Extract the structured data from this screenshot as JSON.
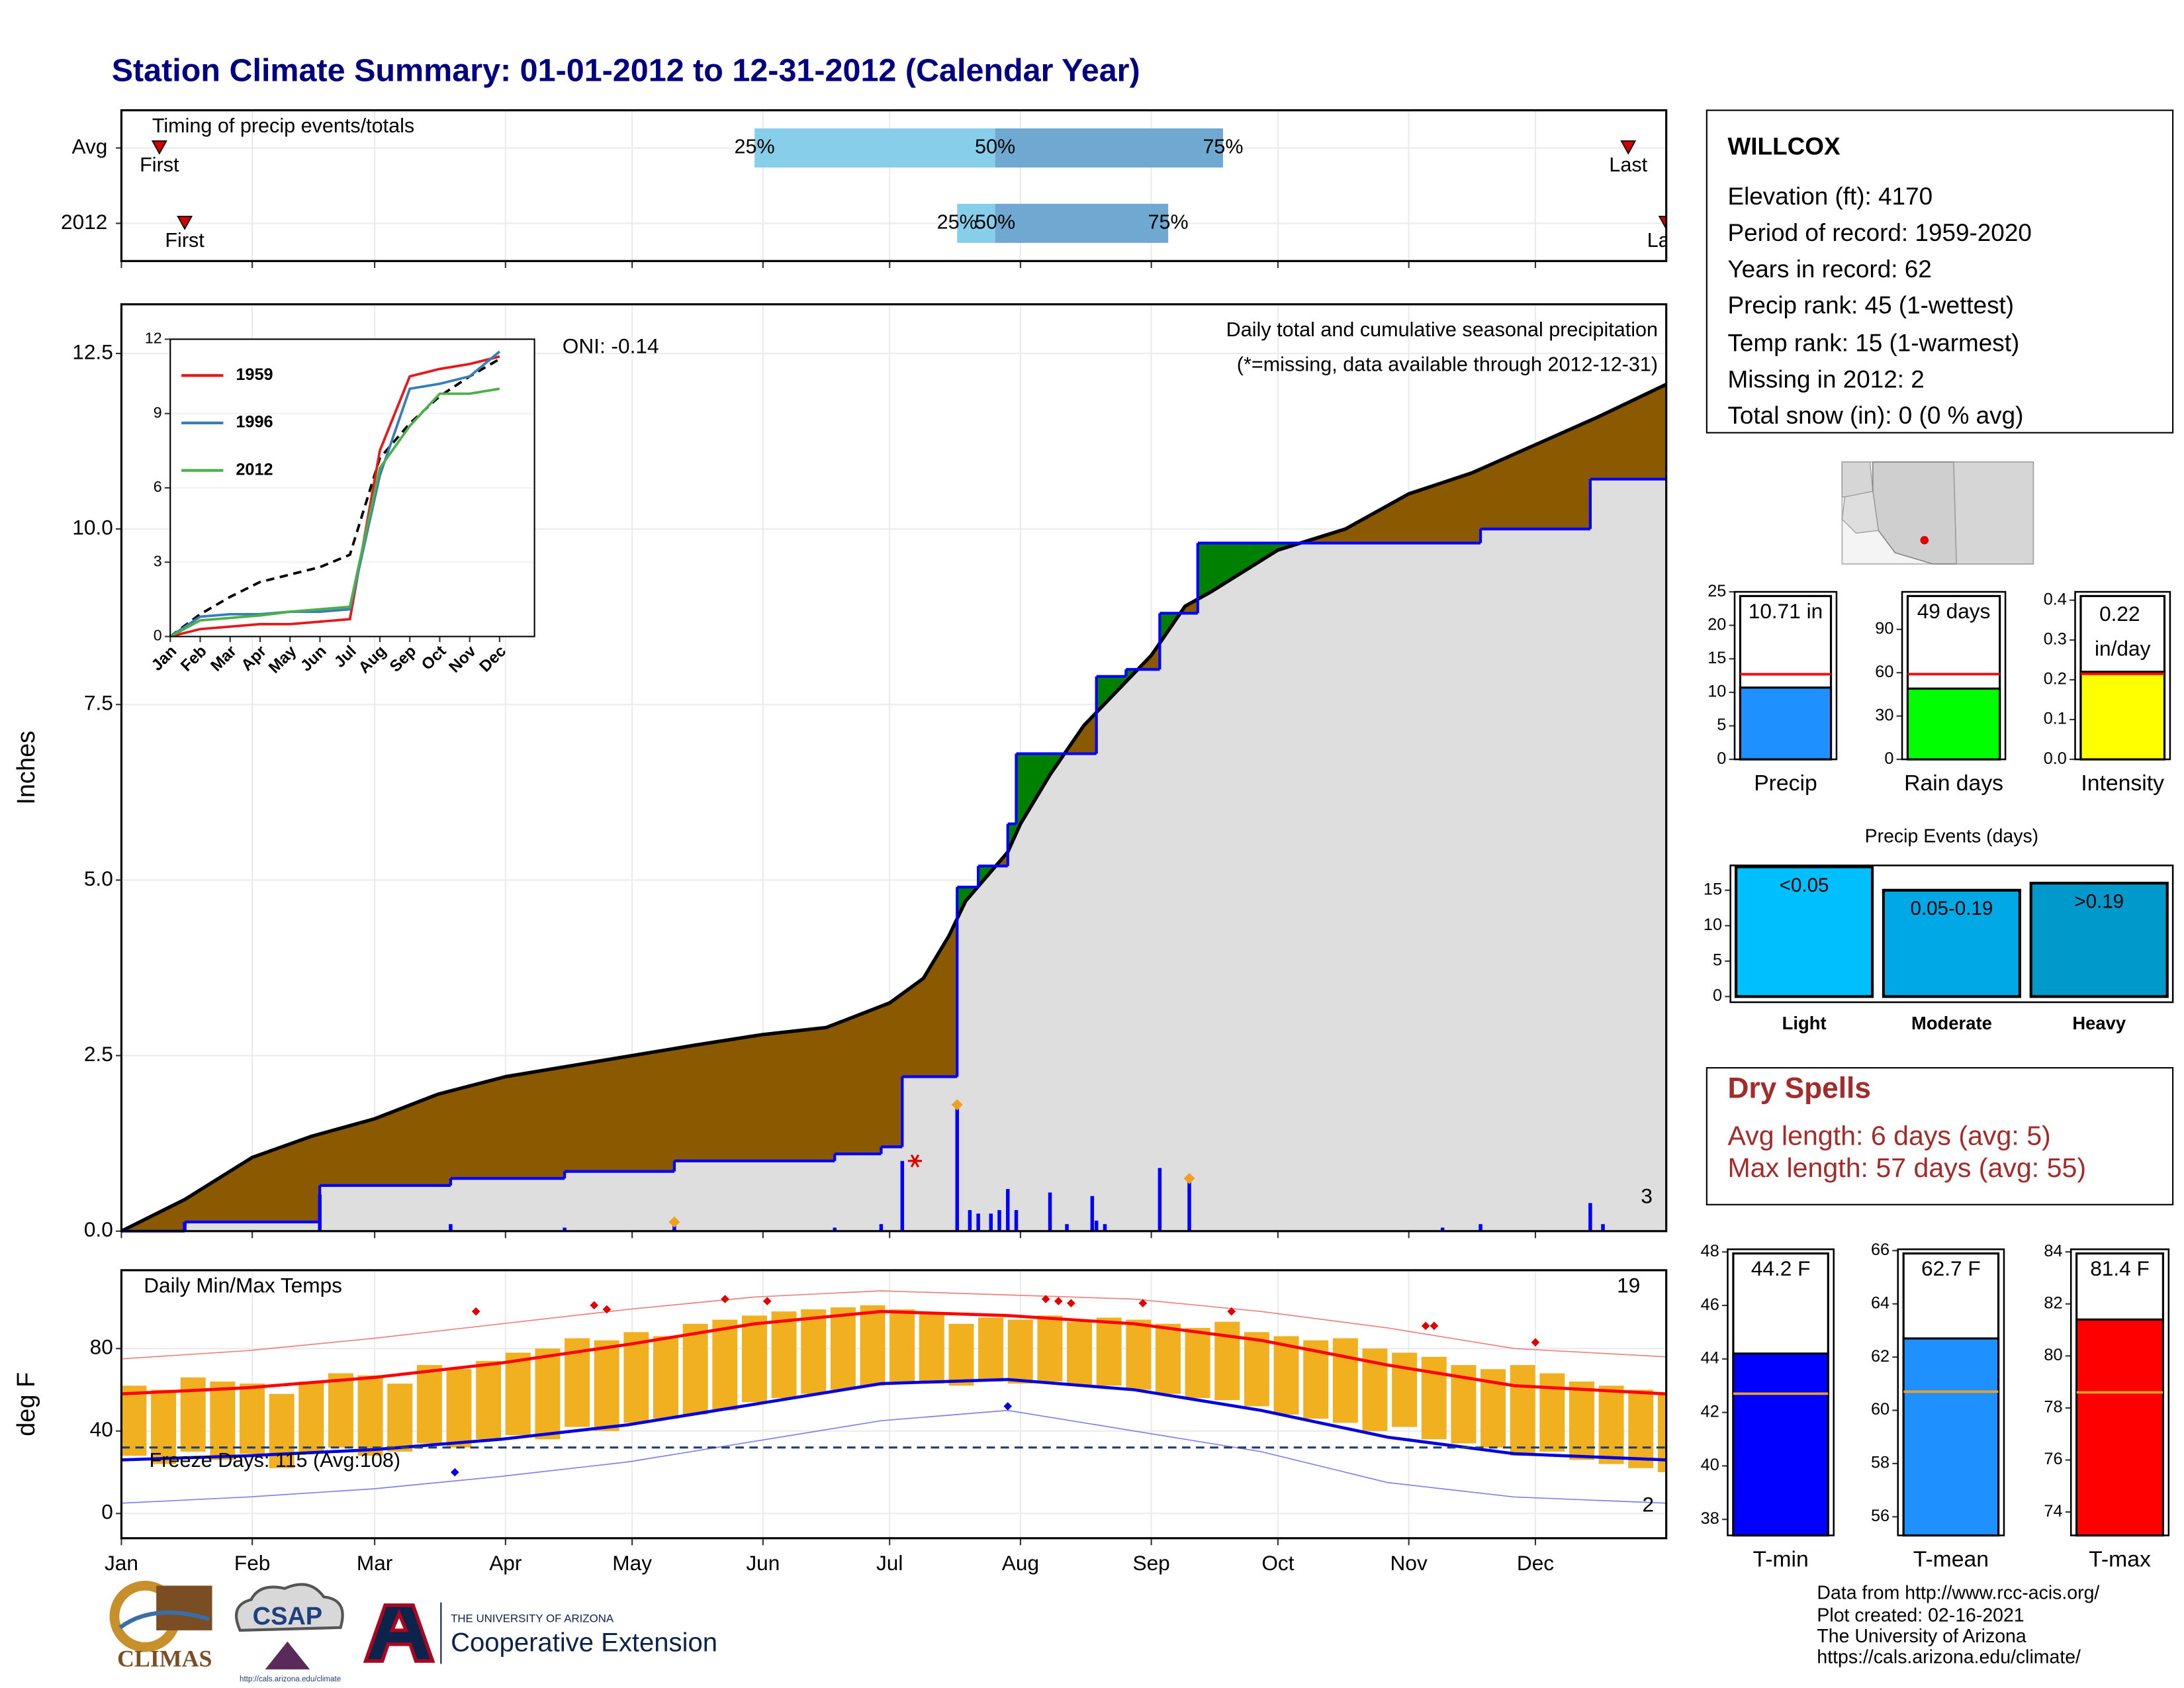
{
  "title": "Station Climate Summary: 01-01-2012 to 12-31-2012 (Calendar Year)",
  "station": {
    "name": "WILLCOX",
    "lines": [
      "Elevation (ft): 4170",
      "Period of record: 1959-2020",
      "Years in record: 62",
      "Precip rank: 45 (1-wettest)",
      "Temp rank: 15 (1-warmest)",
      "Missing in 2012: 2",
      "Total snow (in): 0 (0 % avg)"
    ]
  },
  "dry_spells": {
    "title": "Dry Spells",
    "lines": [
      "Avg length: 6 days (avg: 5)",
      "Max length: 57 days (avg: 55)"
    ]
  },
  "credits": [
    "Data from http://www.rcc-acis.org/",
    "Plot created: 02-16-2021",
    "The University of Arizona",
    "https://cals.arizona.edu/climate/"
  ],
  "logos": {
    "climas": "CLIMAS",
    "csap": "CSAP",
    "csap_url": "http://cals.arizona.edu/climate",
    "university": "THE UNIVERSITY OF ARIZONA",
    "extension": "Cooperative Extension"
  },
  "chart_data": [
    {
      "type": "timeline",
      "title": "Timing of precip events/totals",
      "categories": [
        "Avg",
        "2012"
      ],
      "p25": [
        150,
        198
      ],
      "p50": [
        207,
        207
      ],
      "p75": [
        261,
        248
      ],
      "first": [
        9,
        15
      ],
      "last": [
        357,
        366
      ],
      "percentile_labels": [
        "25%",
        "50%",
        "75%"
      ],
      "first_label": "First",
      "last_label": "Last",
      "light_color": "#87ceeb",
      "dark_color": "#6fa8d0",
      "marker_color": "#d00000",
      "xlim": [
        0,
        366
      ],
      "xticks": [
        0,
        31,
        60,
        91,
        121,
        152,
        182,
        213,
        244,
        274,
        305,
        335
      ],
      "grid": true
    },
    {
      "type": "area",
      "ylabel": "Inches",
      "oni": "ONI: -0.14",
      "subtitle": "Daily total and cumulative seasonal precipitation",
      "note": "(*=missing, data available through 2012-12-31)",
      "note_color": "#e00000",
      "count_label": "3",
      "count_color": "#f0a020",
      "xlim": [
        0,
        366
      ],
      "xticks": [
        0,
        31,
        60,
        91,
        121,
        152,
        182,
        213,
        244,
        274,
        305,
        335
      ],
      "ylim": [
        0,
        13.2
      ],
      "yticks": [
        {
          "value": 0,
          "label": "0.0"
        },
        2.5,
        {
          "value": 5,
          "label": "5.0"
        },
        7.5,
        {
          "value": 10,
          "label": "10.0"
        },
        12.5
      ],
      "grid": true,
      "cumulative_avg": {
        "color": "#000000",
        "fill": "#8b5a00",
        "x": [
          0,
          15,
          31,
          45,
          60,
          75,
          91,
          106,
          121,
          136,
          152,
          167,
          182,
          190,
          196,
          200,
          210,
          213,
          220,
          228,
          236,
          244,
          252,
          258,
          274,
          290,
          305,
          320,
          335,
          350,
          366
        ],
        "values": [
          0,
          0.45,
          1.05,
          1.35,
          1.6,
          1.95,
          2.2,
          2.35,
          2.5,
          2.65,
          2.8,
          2.9,
          3.25,
          3.6,
          4.2,
          4.7,
          5.4,
          5.8,
          6.5,
          7.2,
          7.7,
          8.2,
          8.9,
          9.1,
          9.7,
          10.0,
          10.5,
          10.8,
          11.2,
          11.6,
          12.06
        ]
      },
      "cumulative_2012": {
        "color": "#0000ff",
        "fill": "#dedede",
        "above_fill": "#008000",
        "x": [
          0,
          15,
          47,
          78,
          105,
          131,
          169,
          180,
          185,
          198,
          203,
          210,
          212,
          231,
          238,
          246,
          255,
          322,
          348
        ],
        "values": [
          0,
          0.13,
          0.65,
          0.75,
          0.85,
          1.0,
          1.1,
          1.2,
          2.2,
          4.9,
          5.2,
          5.8,
          6.8,
          7.9,
          8.0,
          8.8,
          9.8,
          10.0,
          10.71
        ]
      },
      "daily": {
        "color": "#0000ff",
        "x": [
          15,
          47,
          78,
          105,
          131,
          169,
          180,
          185,
          198,
          201,
          203,
          206,
          208,
          210,
          212,
          220,
          224,
          230,
          231,
          233,
          246,
          253,
          313,
          322,
          348,
          351
        ],
        "values": [
          0.13,
          0.52,
          0.1,
          0.05,
          0.1,
          0.05,
          0.1,
          1.0,
          1.8,
          0.3,
          0.25,
          0.25,
          0.3,
          0.6,
          0.3,
          0.55,
          0.1,
          0.5,
          0.15,
          0.1,
          0.9,
          0.8,
          0.05,
          0.1,
          0.4,
          0.1
        ]
      },
      "max_markers": {
        "color": "#f0a020",
        "x": [
          131,
          198,
          253
        ],
        "values": [
          0.13,
          1.8,
          0.75
        ]
      },
      "missing_markers": {
        "color": "#e00000",
        "x": [
          188
        ],
        "values": [
          1.0
        ]
      }
    },
    {
      "type": "line",
      "categories": [
        "Jan",
        "Feb",
        "Mar",
        "Apr",
        "May",
        "Jun",
        "Jul",
        "Aug",
        "Sep",
        "Oct",
        "Nov",
        "Dec"
      ],
      "ylim": [
        0,
        12
      ],
      "yticks": [
        0,
        3,
        6,
        9,
        12
      ],
      "grid": true,
      "series": [
        {
          "name": "1959",
          "color": "#e41a1c",
          "values": [
            0,
            0.3,
            0.4,
            0.5,
            0.5,
            0.6,
            0.7,
            7.5,
            10.5,
            10.8,
            11.0,
            11.3
          ]
        },
        {
          "name": "1996",
          "color": "#377eb8",
          "values": [
            0,
            0.8,
            0.9,
            0.9,
            1.0,
            1.0,
            1.1,
            6.5,
            10.0,
            10.2,
            10.5,
            11.5
          ]
        },
        {
          "name": "2012",
          "color": "#4daf4a",
          "values": [
            0,
            0.65,
            0.75,
            0.85,
            1.0,
            1.1,
            1.2,
            6.8,
            8.5,
            9.8,
            9.8,
            10.0
          ]
        }
      ],
      "reference": {
        "color": "#000000",
        "dashed": true,
        "values": [
          0,
          0.9,
          1.6,
          2.2,
          2.5,
          2.8,
          3.3,
          7.2,
          8.6,
          9.7,
          10.5,
          11.2
        ]
      }
    },
    {
      "type": "rangebar",
      "title": "Daily Min/Max Temps",
      "ylabel": "deg F",
      "high_count": "19",
      "low_count": "2",
      "freeze_label": "Freeze Days: 115 (Avg:108)",
      "xlim": [
        0,
        366
      ],
      "xticks": [
        {
          "value": 0,
          "label": "Jan"
        },
        {
          "value": 31,
          "label": "Feb"
        },
        {
          "value": 60,
          "label": "Mar"
        },
        {
          "value": 91,
          "label": "Apr"
        },
        {
          "value": 121,
          "label": "May"
        },
        {
          "value": 152,
          "label": "Jun"
        },
        {
          "value": 182,
          "label": "Jul"
        },
        {
          "value": 213,
          "label": "Aug"
        },
        {
          "value": 244,
          "label": "Sep"
        },
        {
          "value": 274,
          "label": "Oct"
        },
        {
          "value": 305,
          "label": "Nov"
        },
        {
          "value": 335,
          "label": "Dec"
        }
      ],
      "ylim": [
        -12,
        118
      ],
      "yticks": [
        0,
        40,
        80
      ],
      "grid": true,
      "bars": {
        "color": "#f0b020",
        "x": [
          0,
          7,
          14,
          21,
          28,
          35,
          42,
          49,
          56,
          63,
          70,
          77,
          84,
          91,
          98,
          105,
          112,
          119,
          126,
          133,
          140,
          147,
          154,
          161,
          168,
          175,
          182,
          189,
          196,
          203,
          210,
          217,
          224,
          231,
          238,
          245,
          252,
          259,
          266,
          273,
          280,
          287,
          294,
          301,
          308,
          315,
          322,
          329,
          336,
          343,
          350,
          357,
          364
        ],
        "min": [
          28,
          24,
          30,
          26,
          29,
          22,
          30,
          32,
          28,
          30,
          34,
          32,
          36,
          38,
          36,
          42,
          40,
          44,
          46,
          48,
          50,
          54,
          56,
          58,
          60,
          62,
          64,
          63,
          62,
          64,
          63,
          64,
          62,
          62,
          60,
          58,
          56,
          55,
          52,
          48,
          46,
          44,
          40,
          42,
          36,
          34,
          32,
          28,
          30,
          26,
          24,
          22,
          20
        ],
        "max": [
          62,
          60,
          66,
          64,
          63,
          58,
          64,
          68,
          67,
          63,
          72,
          70,
          74,
          78,
          80,
          85,
          84,
          88,
          86,
          92,
          94,
          96,
          98,
          99,
          100,
          101,
          99,
          97,
          92,
          95,
          94,
          96,
          93,
          95,
          94,
          92,
          90,
          93,
          88,
          86,
          84,
          85,
          80,
          78,
          76,
          72,
          70,
          72,
          68,
          64,
          62,
          60,
          58
        ]
      },
      "line_x": [
        0,
        30,
        60,
        90,
        120,
        150,
        180,
        210,
        240,
        270,
        300,
        330,
        366
      ],
      "record_high": {
        "color": "#f08080",
        "values": [
          75,
          79,
          85,
          92,
          99,
          105,
          108,
          106,
          104,
          98,
          90,
          80,
          76
        ]
      },
      "normal_high": {
        "color": "#ff0000",
        "values": [
          58,
          61,
          66,
          73,
          82,
          92,
          98,
          96,
          92,
          84,
          72,
          62,
          58
        ]
      },
      "normal_low": {
        "color": "#0000e0",
        "values": [
          26,
          28,
          31,
          36,
          43,
          53,
          63,
          65,
          60,
          50,
          37,
          29,
          26
        ]
      },
      "record_low": {
        "color": "#8080f0",
        "values": [
          5,
          8,
          12,
          18,
          25,
          35,
          45,
          50,
          40,
          30,
          15,
          8,
          5
        ]
      },
      "freeze_threshold": 32,
      "freeze_color": "#1f3f6f",
      "record_high_markers": {
        "color": "#e00000",
        "x": [
          84,
          112,
          115,
          143,
          153,
          219,
          222,
          225,
          242,
          263,
          309,
          311,
          335
        ],
        "values": [
          98,
          101,
          99,
          104,
          103,
          104,
          103,
          102,
          102,
          98,
          91,
          91,
          83
        ]
      },
      "record_low_markers": {
        "color": "#0000e0",
        "x": [
          79,
          210
        ],
        "values": [
          20,
          52
        ]
      }
    },
    {
      "type": "bar",
      "categories": [
        "Precip"
      ],
      "values": [
        10.71
      ],
      "value_labels": [
        "10.71 in"
      ],
      "color": "#1e90ff",
      "average": 12.7,
      "average_color": "#ff0000",
      "ylim": [
        0,
        25
      ],
      "yticks": [
        0,
        5,
        10,
        15,
        20,
        25
      ]
    },
    {
      "type": "bar",
      "categories": [
        "Rain days"
      ],
      "values": [
        49
      ],
      "value_labels": [
        "49 days"
      ],
      "color": "#00ff00",
      "average": 59,
      "average_color": "#ff0000",
      "ylim": [
        0,
        116
      ],
      "yticks": [
        0,
        30,
        60,
        90
      ]
    },
    {
      "type": "bar",
      "categories": [
        "Intensity"
      ],
      "values": [
        0.22
      ],
      "value_labels": [
        "0.22 in/day"
      ],
      "color": "#ffff00",
      "average": 0.215,
      "average_color": "#ff0000",
      "ylim": [
        0,
        0.421
      ],
      "yticks": [
        {
          "value": 0,
          "label": "0.0"
        },
        0.1,
        0.2,
        0.3,
        0.4
      ]
    },
    {
      "type": "bar",
      "title": "Precip Events (days)",
      "categories": [
        "Light",
        "Moderate",
        "Heavy"
      ],
      "values": [
        18.3,
        15,
        16
      ],
      "bin_labels": [
        "<0.05",
        "0.05-0.19",
        ">0.19"
      ],
      "colors": [
        "#00bfff",
        "#00a9e6",
        "#0099cc"
      ],
      "ylim": [
        -0.8,
        18.5
      ],
      "yticks": [
        0,
        5,
        10,
        15
      ]
    },
    {
      "type": "bar",
      "categories": [
        "T-min"
      ],
      "values": [
        44.2
      ],
      "value_labels": [
        "44.2 F"
      ],
      "color": "#0000ff",
      "average": 42.7,
      "average_color": "#f0a020",
      "ylim": [
        37.4,
        48.1
      ],
      "yticks": [
        38,
        40,
        42,
        44,
        46,
        48
      ]
    },
    {
      "type": "bar",
      "categories": [
        "T-mean"
      ],
      "values": [
        62.7
      ],
      "value_labels": [
        "62.7 F"
      ],
      "color": "#1e90ff",
      "average": 60.7,
      "average_color": "#f0a020",
      "ylim": [
        55.3,
        66.05
      ],
      "yticks": [
        56,
        58,
        60,
        62,
        64,
        66
      ]
    },
    {
      "type": "bar",
      "categories": [
        "T-max"
      ],
      "values": [
        81.4
      ],
      "value_labels": [
        "81.4 F"
      ],
      "color": "#ff0000",
      "average": 78.6,
      "average_color": "#f0a020",
      "ylim": [
        73.1,
        84.1
      ],
      "yticks": [
        74,
        76,
        78,
        80,
        82,
        84
      ]
    }
  ]
}
